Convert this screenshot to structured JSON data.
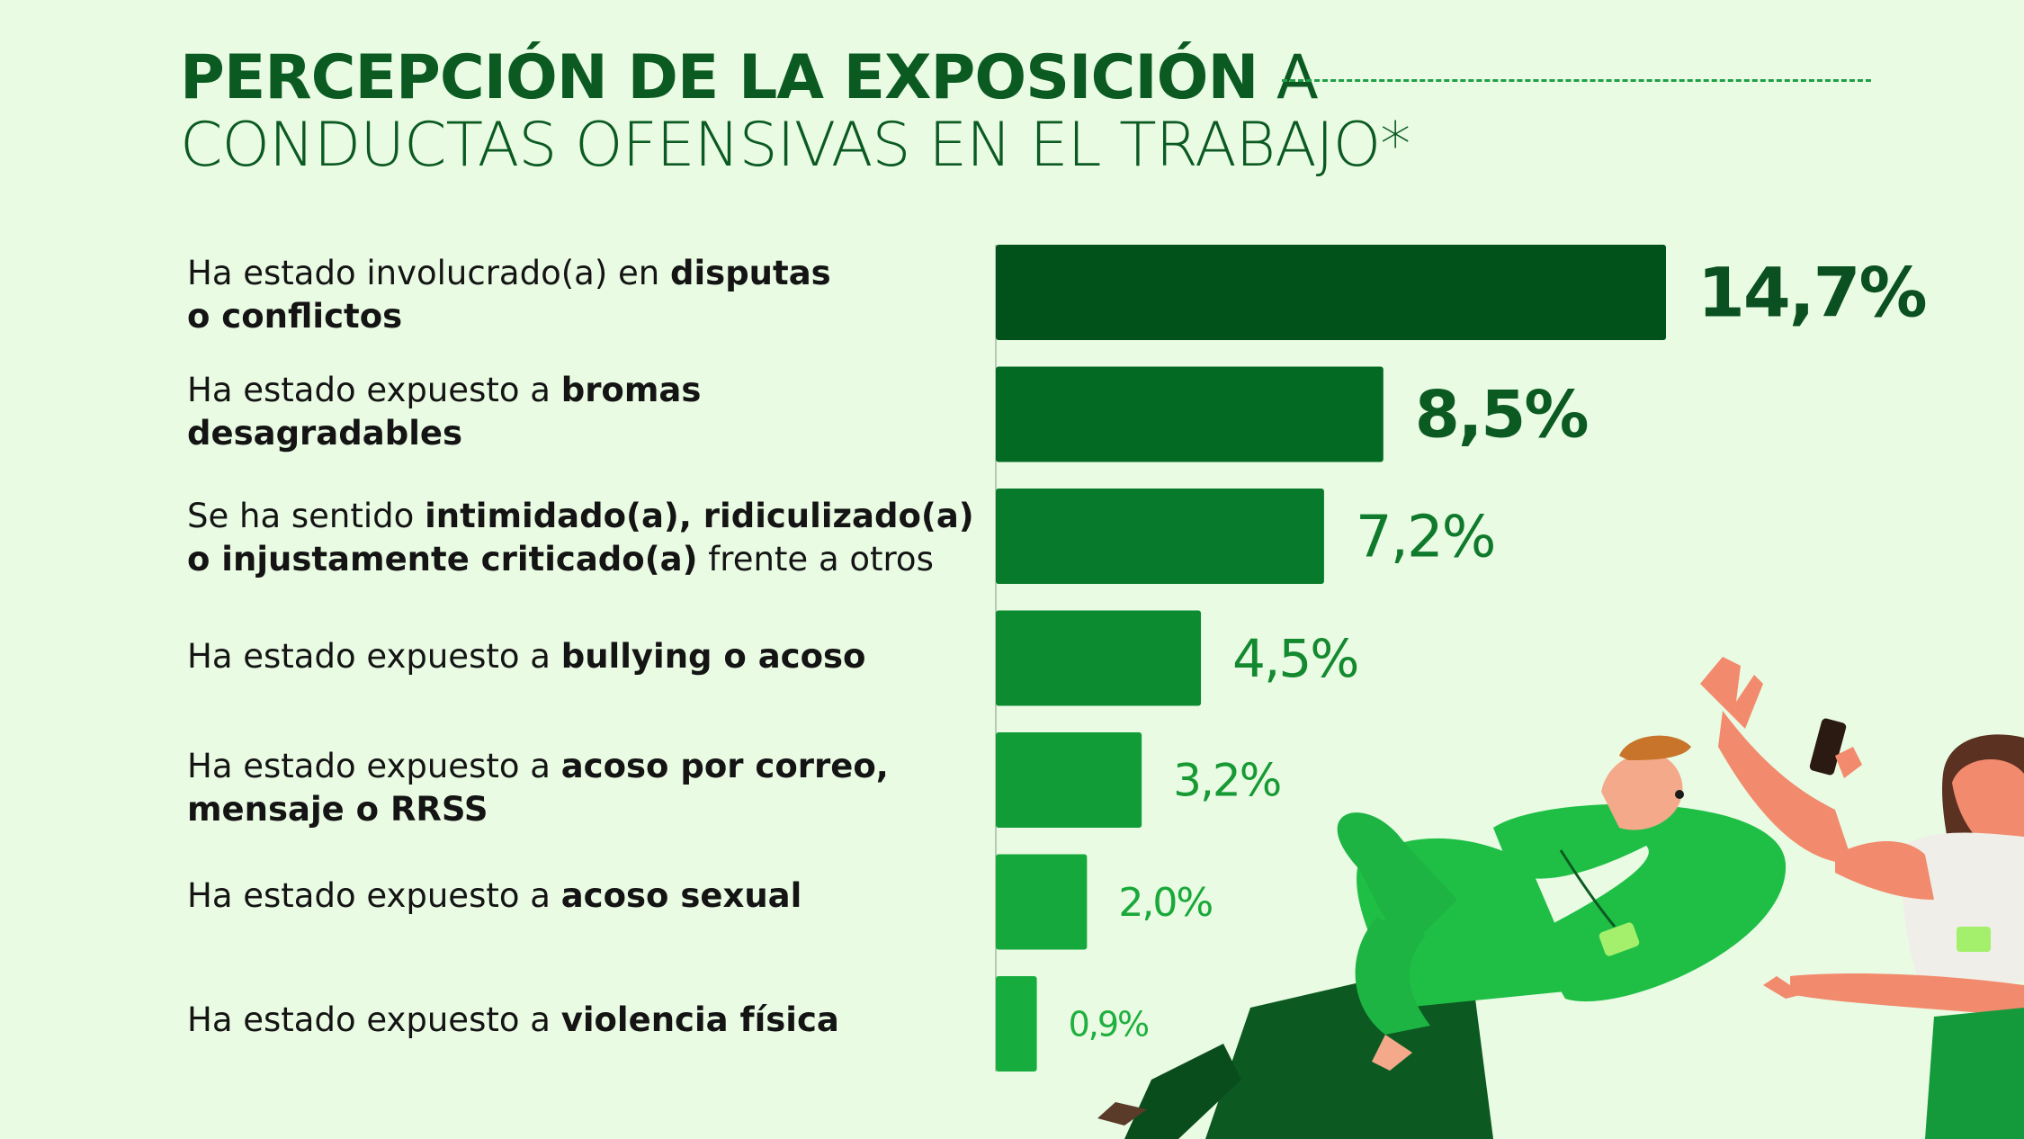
{
  "title": {
    "bold": "PERCEPCIÓN DE LA EXPOSICIÓN",
    "rest_line1": " A",
    "line2": "CONDUCTAS OFENSIVAS EN EL TRABAJO*"
  },
  "colors": {
    "background": "#e9fbe3",
    "title": "#0b5a22",
    "bar_darkest": "#00521a",
    "bar_lightest": "#17ad3e"
  },
  "rows": [
    {
      "pre": "Ha estado involucrado(a) en ",
      "bold1": "disputas",
      "mid": "",
      "bold2": "o conflictos",
      "post": ""
    },
    {
      "pre": "Ha estado expuesto a ",
      "bold1": "bromas",
      "mid": "",
      "bold2": "desagradables",
      "post": ""
    },
    {
      "pre": "Se ha sentido ",
      "bold1": "intimidado(a), ridiculizado(a)",
      "mid": "",
      "bold2": "o injustamente criticado(a)",
      "post": " frente a otros"
    },
    {
      "pre": "Ha estado expuesto a ",
      "bold1": "bullying o acoso",
      "mid": "",
      "bold2": "",
      "post": ""
    },
    {
      "pre": "Ha estado expuesto a ",
      "bold1": "acoso por correo,",
      "mid": "",
      "bold2": "mensaje o RRSS",
      "post": ""
    },
    {
      "pre": "Ha estado expuesto a ",
      "bold1": "acoso sexual",
      "mid": "",
      "bold2": "",
      "post": ""
    },
    {
      "pre": "Ha estado expuesto a ",
      "bold1": "violencia física",
      "mid": "",
      "bold2": "",
      "post": ""
    }
  ],
  "chart_data": {
    "type": "bar",
    "orientation": "horizontal",
    "title": "PERCEPCIÓN DE LA EXPOSICIÓN A CONDUCTAS OFENSIVAS EN EL TRABAJO*",
    "categories": [
      "Ha estado involucrado(a) en disputas o conflictos",
      "Ha estado expuesto a bromas desagradables",
      "Se ha sentido intimidado(a), ridiculizado(a) o injustamente criticado(a) frente a otros",
      "Ha estado expuesto a bullying o acoso",
      "Ha estado expuesto a acoso por correo, mensaje o RRSS",
      "Ha estado expuesto a acoso sexual",
      "Ha estado expuesto a violencia física"
    ],
    "values": [
      14.7,
      8.5,
      7.2,
      4.5,
      3.2,
      2.0,
      0.9
    ],
    "value_labels": [
      "14,7%",
      "8,5%",
      "7,2%",
      "4,5%",
      "3,2%",
      "2,0%",
      "0,9%"
    ],
    "bar_colors": [
      "#00521a",
      "#026a23",
      "#087a2b",
      "#0d8b31",
      "#119c37",
      "#15a83c",
      "#17ad3e"
    ],
    "label_colors": [
      "#0a5020",
      "#0b5a22",
      "#107a2c",
      "#14892f",
      "#179a34",
      "#1aa83a",
      "#1fb03f"
    ],
    "grid": false
  }
}
